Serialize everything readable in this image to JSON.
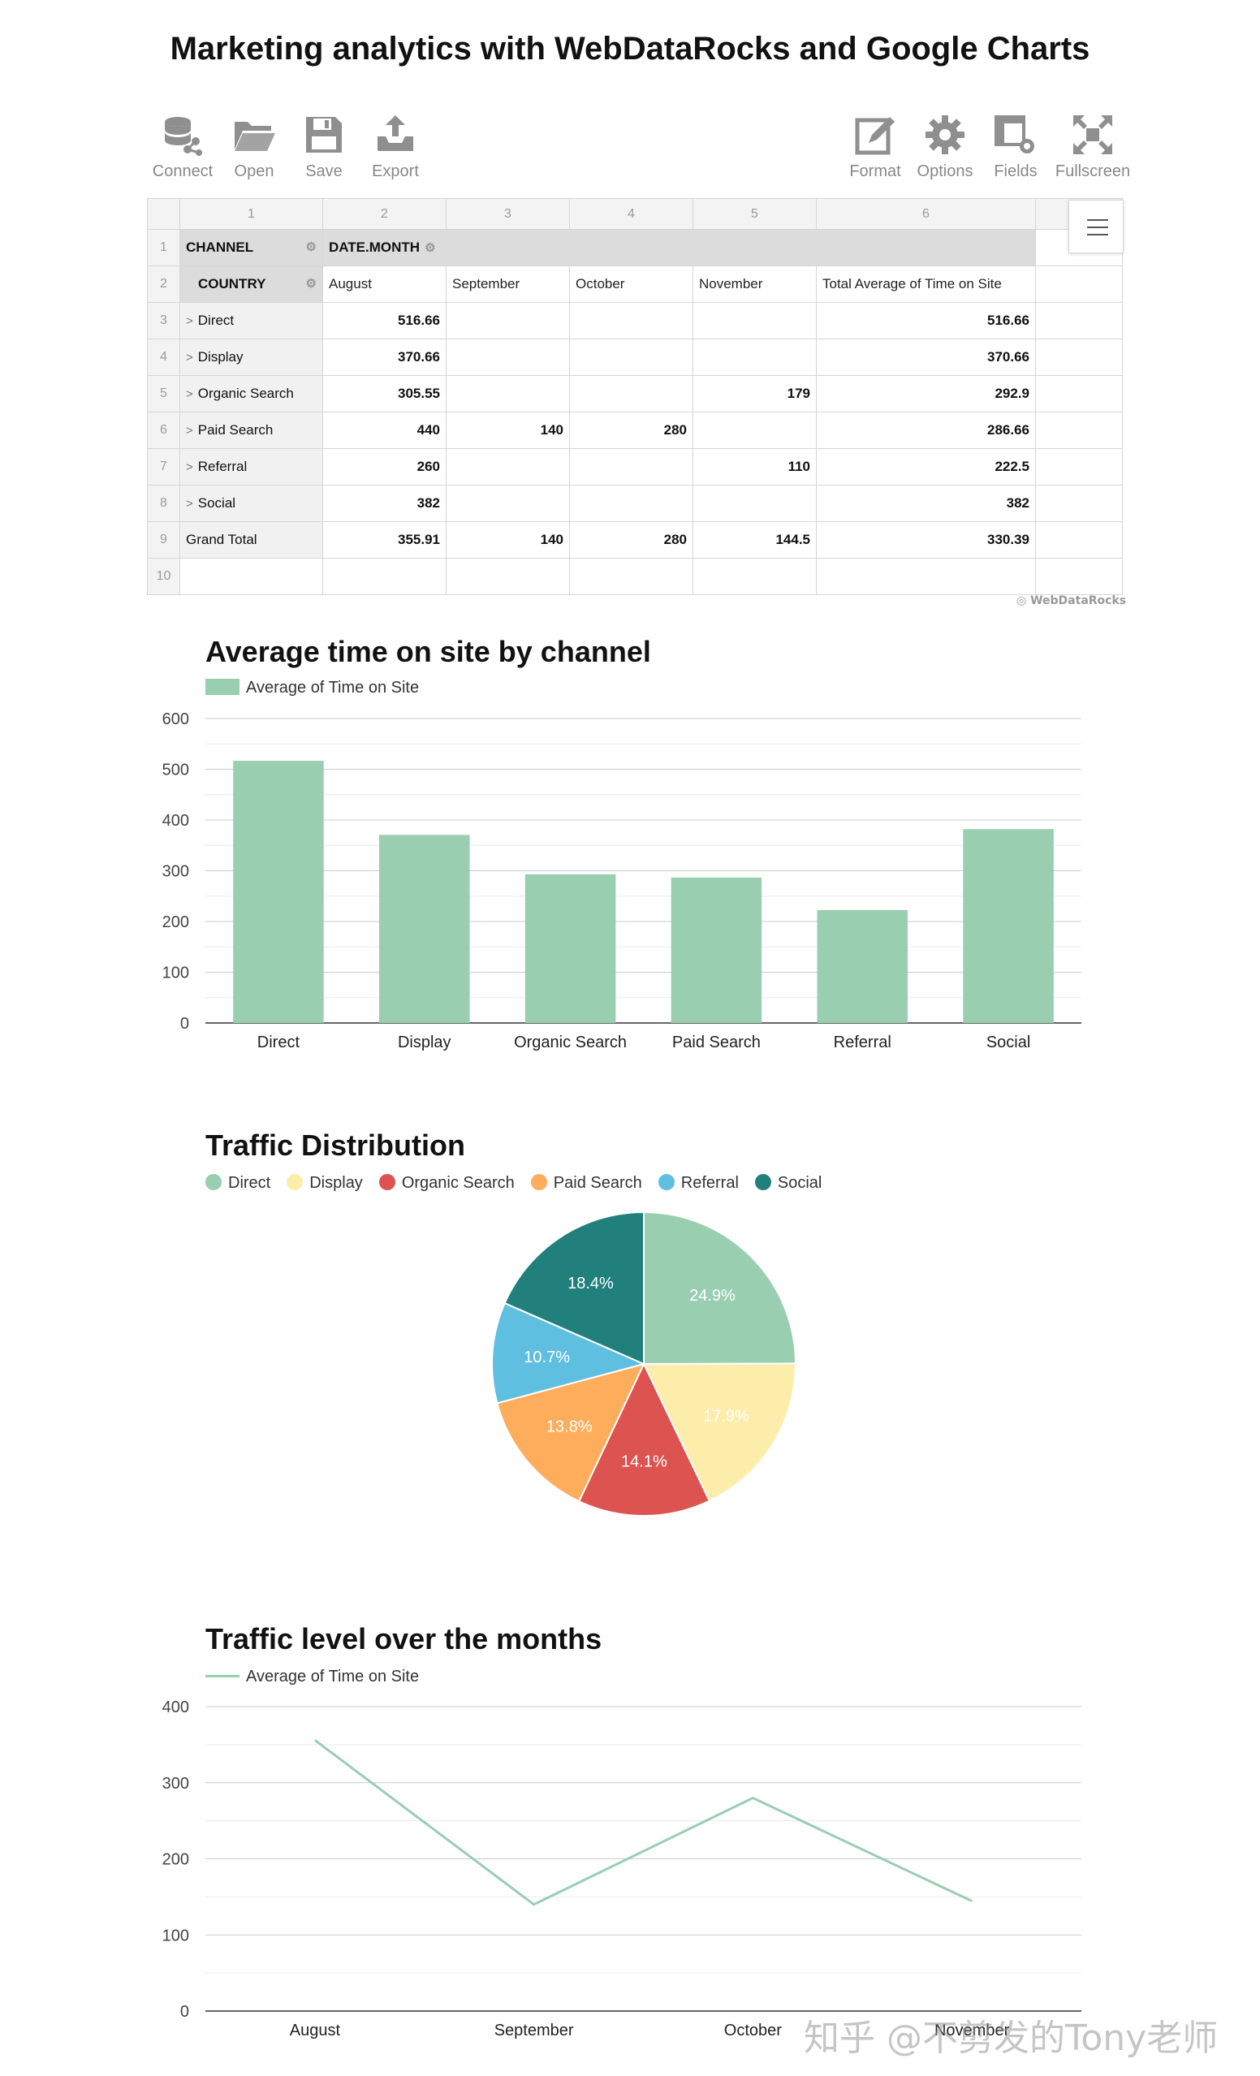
{
  "page": {
    "title": "Marketing analytics with WebDataRocks and Google Charts"
  },
  "toolbar": {
    "left": [
      {
        "label": "Connect",
        "icon": "connect-icon"
      },
      {
        "label": "Open",
        "icon": "folder-open-icon"
      },
      {
        "label": "Save",
        "icon": "save-icon"
      },
      {
        "label": "Export",
        "icon": "export-icon"
      }
    ],
    "right": [
      {
        "label": "Format",
        "icon": "format-icon"
      },
      {
        "label": "Options",
        "icon": "gear-icon"
      },
      {
        "label": "Fields",
        "icon": "fields-icon"
      },
      {
        "label": "Fullscreen",
        "icon": "fullscreen-icon"
      }
    ]
  },
  "pivot": {
    "column_numbers": [
      "1",
      "2",
      "3",
      "4",
      "5",
      "6"
    ],
    "row_numbers": [
      "1",
      "2",
      "3",
      "4",
      "5",
      "6",
      "7",
      "8",
      "9",
      "10"
    ],
    "row_field": "CHANNEL",
    "sub_row_field": "COUNTRY",
    "column_field": "DATE.MONTH",
    "columns": [
      "August",
      "September",
      "October",
      "November",
      "Total Average of Time on Site"
    ],
    "rows": [
      {
        "label": "Direct",
        "values": [
          "516.66",
          "",
          "",
          "",
          "516.66"
        ]
      },
      {
        "label": "Display",
        "values": [
          "370.66",
          "",
          "",
          "",
          "370.66"
        ]
      },
      {
        "label": "Organic Search",
        "values": [
          "305.55",
          "",
          "",
          "179",
          "292.9"
        ]
      },
      {
        "label": "Paid Search",
        "values": [
          "440",
          "140",
          "280",
          "",
          "286.66"
        ]
      },
      {
        "label": "Referral",
        "values": [
          "260",
          "",
          "",
          "110",
          "222.5"
        ]
      },
      {
        "label": "Social",
        "values": [
          "382",
          "",
          "",
          "",
          "382"
        ]
      }
    ],
    "grand_total": {
      "label": "Grand Total",
      "values": [
        "355.91",
        "140",
        "280",
        "144.5",
        "330.39"
      ]
    },
    "brand": "WebDataRocks"
  },
  "chart_data": [
    {
      "type": "bar",
      "title": "Average time on site by channel",
      "categories": [
        "Direct",
        "Display",
        "Organic Search",
        "Paid Search",
        "Referral",
        "Social"
      ],
      "series": [
        {
          "name": "Average of Time on Site",
          "values": [
            516.66,
            370.66,
            292.9,
            286.66,
            222.5,
            382
          ],
          "color": "#99ceb1"
        }
      ],
      "ylim": [
        0,
        600
      ],
      "yticks": [
        0,
        100,
        200,
        300,
        400,
        500,
        600
      ],
      "grid": true,
      "legend": "top-left"
    },
    {
      "type": "pie",
      "title": "Traffic Distribution",
      "slices": [
        {
          "label": "Direct",
          "percent": 24.9,
          "color": "#99ceb1"
        },
        {
          "label": "Display",
          "percent": 17.9,
          "color": "#fdedab"
        },
        {
          "label": "Organic Search",
          "percent": 14.1,
          "color": "#dc5350"
        },
        {
          "label": "Paid Search",
          "percent": 13.8,
          "color": "#fdad5c"
        },
        {
          "label": "Referral",
          "percent": 10.7,
          "color": "#5fbfe0"
        },
        {
          "label": "Social",
          "percent": 18.4,
          "color": "#21807b"
        }
      ],
      "legend": "top"
    },
    {
      "type": "line",
      "title": "Traffic level over the months",
      "categories": [
        "August",
        "September",
        "October",
        "November"
      ],
      "series": [
        {
          "name": "Average of Time on Site",
          "values": [
            355.91,
            140,
            280,
            144.5
          ],
          "color": "#99ceb1"
        }
      ],
      "ylim": [
        0,
        400
      ],
      "yticks": [
        0,
        100,
        200,
        300,
        400
      ],
      "grid": true,
      "legend": "top-left"
    }
  ],
  "watermark": "知乎 @不剪发的Tony老师"
}
